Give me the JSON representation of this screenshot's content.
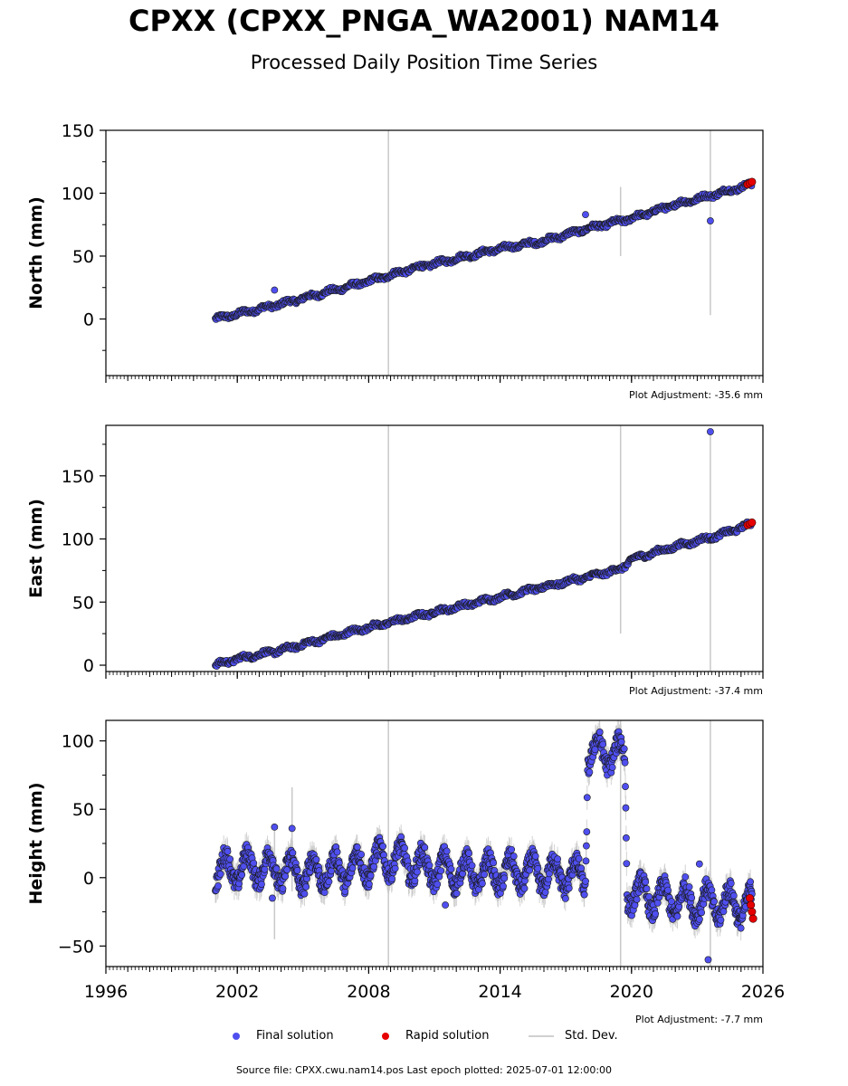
{
  "title": "CPXX (CPXX_PNGA_WA2001) NAM14",
  "subtitle": "Processed Daily Position Time Series",
  "legend": {
    "final": "Final solution",
    "rapid": "Rapid solution",
    "stddev": "Std. Dev."
  },
  "footer": "Source file: CPXX.cwu.nam14.pos  Last epoch plotted: 2025-07-01 12:00:00",
  "colors": {
    "final": "#4f4ff0",
    "rapid": "#e60000",
    "stddev": "#c8c8c8",
    "outline": "#1a1a1a"
  },
  "chart_data": [
    {
      "type": "scatter",
      "ylabel": "North (mm)",
      "adjustment": "Plot Adjustment: -35.6 mm",
      "xlim": [
        1996,
        2026
      ],
      "ylim": [
        -45,
        150
      ],
      "yticks": [
        0,
        50,
        100,
        150
      ],
      "xticks": [
        1996,
        2002,
        2008,
        2014,
        2020,
        2026
      ],
      "show_xtick_labels": false,
      "series": [
        {
          "values": [
            [
              2001.0,
              0
            ],
            [
              2002.0,
              4
            ],
            [
              2004.0,
              12
            ],
            [
              2006.0,
              21
            ],
            [
              2008.0,
              30
            ],
            [
              2010.0,
              40
            ],
            [
              2012.0,
              48
            ],
            [
              2014.0,
              56
            ],
            [
              2016.0,
              62
            ],
            [
              2018.0,
              72
            ],
            [
              2020.0,
              80
            ],
            [
              2022.0,
              91
            ],
            [
              2024.0,
              100
            ],
            [
              2025.5,
              107
            ]
          ]
        },
        {
          "values": [
            [
              2025.3,
              107
            ],
            [
              2025.4,
              108
            ],
            [
              2025.5,
              109
            ]
          ]
        }
      ],
      "outliers": [
        [
          2003.7,
          23
        ],
        [
          2017.9,
          83
        ],
        [
          2023.6,
          78
        ]
      ],
      "error_spikes": [
        [
          2008.9,
          -45,
          150
        ],
        [
          2019.5,
          50,
          105
        ],
        [
          2023.6,
          3,
          150
        ]
      ]
    },
    {
      "type": "scatter",
      "ylabel": "East (mm)",
      "adjustment": "Plot Adjustment: -37.4 mm",
      "xlim": [
        1996,
        2026
      ],
      "ylim": [
        -5,
        190
      ],
      "yticks": [
        0,
        50,
        100,
        150
      ],
      "xticks": [
        1996,
        2002,
        2008,
        2014,
        2020,
        2026
      ],
      "show_xtick_labels": false,
      "series": [
        {
          "values": [
            [
              2001.0,
              0
            ],
            [
              2002.0,
              5
            ],
            [
              2004.0,
              12
            ],
            [
              2006.0,
              21
            ],
            [
              2008.0,
              30
            ],
            [
              2010.0,
              38
            ],
            [
              2012.0,
              46
            ],
            [
              2014.0,
              54
            ],
            [
              2016.0,
              62
            ],
            [
              2018.0,
              70
            ],
            [
              2019.5,
              76
            ],
            [
              2020.0,
              84
            ],
            [
              2022.0,
              94
            ],
            [
              2024.0,
              103
            ],
            [
              2025.5,
              112
            ]
          ]
        },
        {
          "values": [
            [
              2025.3,
              111
            ],
            [
              2025.4,
              112
            ],
            [
              2025.5,
              113
            ]
          ]
        }
      ],
      "outliers": [
        [
          2023.6,
          185
        ]
      ],
      "error_spikes": [
        [
          2008.9,
          -5,
          190
        ],
        [
          2019.5,
          25,
          190
        ],
        [
          2023.6,
          -5,
          185
        ]
      ]
    },
    {
      "type": "scatter",
      "ylabel": "Height (mm)",
      "adjustment": "Plot Adjustment: -7.7 mm",
      "xlim": [
        1996,
        2026
      ],
      "ylim": [
        -65,
        115
      ],
      "yticks": [
        -50,
        0,
        50,
        100
      ],
      "xticks": [
        1996,
        2002,
        2008,
        2014,
        2020,
        2026
      ],
      "show_xtick_labels": true,
      "series": [
        {
          "values": [
            [
              2001.0,
              5
            ],
            [
              2003.0,
              8
            ],
            [
              2005.0,
              3
            ],
            [
              2007.0,
              6
            ],
            [
              2009.0,
              14
            ],
            [
              2011.0,
              6
            ],
            [
              2013.0,
              3
            ],
            [
              2015.0,
              4
            ],
            [
              2017.0,
              2
            ],
            [
              2017.9,
              0
            ],
            [
              2018.0,
              90
            ],
            [
              2019.0,
              92
            ],
            [
              2019.7,
              88
            ],
            [
              2019.8,
              -10
            ],
            [
              2021.0,
              -15
            ],
            [
              2023.0,
              -18
            ],
            [
              2025.5,
              -20
            ]
          ]
        },
        {
          "values": [
            [
              2025.4,
              -15
            ],
            [
              2025.45,
              -20
            ],
            [
              2025.5,
              -25
            ],
            [
              2025.55,
              -30
            ]
          ]
        }
      ],
      "outliers": [
        [
          2003.7,
          37
        ],
        [
          2004.5,
          36
        ],
        [
          2003.6,
          -15
        ],
        [
          2011.5,
          -20
        ],
        [
          2023.5,
          -60
        ],
        [
          2023.1,
          10
        ]
      ],
      "error_spikes": [
        [
          2008.9,
          -65,
          115
        ],
        [
          2019.5,
          -65,
          115
        ],
        [
          2023.6,
          -65,
          115
        ],
        [
          2004.5,
          -10,
          66
        ],
        [
          2003.7,
          -45,
          35
        ]
      ]
    }
  ]
}
